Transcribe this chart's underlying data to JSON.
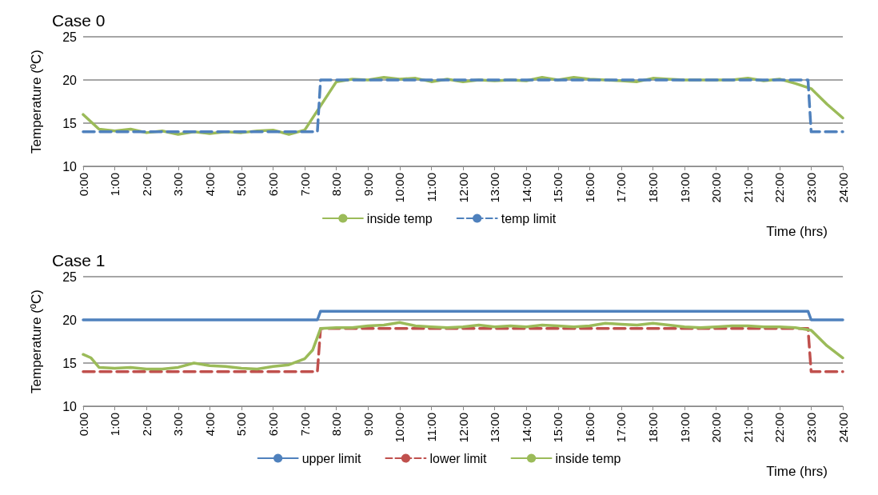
{
  "chart_data": [
    {
      "type": "line",
      "title": "Case 0",
      "xlabel": "Time (hrs)",
      "ylabel": "Temperature (ºC)",
      "xlim": [
        0,
        24
      ],
      "xticks": [
        {
          "value": 0,
          "label": "0:00"
        },
        {
          "value": 1,
          "label": "1:00"
        },
        {
          "value": 2,
          "label": "2:00"
        },
        {
          "value": 3,
          "label": "3:00"
        },
        {
          "value": 4,
          "label": "4:00"
        },
        {
          "value": 5,
          "label": "5:00"
        },
        {
          "value": 6,
          "label": "6:00"
        },
        {
          "value": 7,
          "label": "7:00"
        },
        {
          "value": 8,
          "label": "8:00"
        },
        {
          "value": 9,
          "label": "9:00"
        },
        {
          "value": 10,
          "label": "10:00"
        },
        {
          "value": 11,
          "label": "11:00"
        },
        {
          "value": 12,
          "label": "12:00"
        },
        {
          "value": 13,
          "label": "13:00"
        },
        {
          "value": 14,
          "label": "14:00"
        },
        {
          "value": 15,
          "label": "15:00"
        },
        {
          "value": 16,
          "label": "16:00"
        },
        {
          "value": 17,
          "label": "17:00"
        },
        {
          "value": 18,
          "label": "18:00"
        },
        {
          "value": 19,
          "label": "19:00"
        },
        {
          "value": 20,
          "label": "20:00"
        },
        {
          "value": 21,
          "label": "21:00"
        },
        {
          "value": 22,
          "label": "22:00"
        },
        {
          "value": 23,
          "label": "23:00"
        },
        {
          "value": 24,
          "label": "24:00"
        }
      ],
      "ylim": [
        10,
        25
      ],
      "yticks": [
        10,
        15,
        20,
        25
      ],
      "grid": "y",
      "legend": "bottom",
      "marker": "none",
      "series": [
        {
          "name": "inside temp",
          "color": "#9bbb59",
          "line_style": "solid",
          "x": [
            0,
            0.5,
            1,
            1.5,
            2,
            2.5,
            3,
            3.5,
            4,
            4.5,
            5,
            5.5,
            6,
            6.5,
            7,
            7.5,
            8,
            8.5,
            9,
            9.5,
            10,
            10.5,
            11,
            11.5,
            12,
            12.5,
            13,
            13.5,
            14,
            14.5,
            15,
            15.5,
            16,
            16.5,
            17,
            17.5,
            18,
            18.5,
            19,
            19.5,
            20,
            20.5,
            21,
            21.5,
            22,
            22.5,
            23,
            23.5,
            24
          ],
          "values": [
            16,
            14.3,
            14.1,
            14.3,
            13.9,
            14.1,
            13.7,
            14,
            13.8,
            14,
            13.9,
            14.1,
            14.2,
            13.7,
            14.2,
            17,
            19.8,
            20.1,
            20,
            20.3,
            20.1,
            20.2,
            19.8,
            20.1,
            19.8,
            20,
            19.9,
            20,
            19.9,
            20.3,
            20,
            20.3,
            20.1,
            20,
            19.9,
            19.8,
            20.2,
            20.1,
            20,
            20,
            20,
            20,
            20.2,
            19.9,
            20.1,
            19.6,
            19,
            17.2,
            15.6
          ]
        },
        {
          "name": "temp limit",
          "color": "#4f81bd",
          "line_style": "dashed",
          "x": [
            0,
            7.4,
            7.5,
            22.9,
            23,
            24
          ],
          "values": [
            14,
            14,
            20,
            20,
            14,
            14
          ]
        }
      ]
    },
    {
      "type": "line",
      "title": "Case 1",
      "xlabel": "Time (hrs)",
      "ylabel": "Temperature (ºC)",
      "xlim": [
        0,
        24
      ],
      "xticks": [
        {
          "value": 0,
          "label": "0:00"
        },
        {
          "value": 1,
          "label": "1:00"
        },
        {
          "value": 2,
          "label": "2:00"
        },
        {
          "value": 3,
          "label": "3:00"
        },
        {
          "value": 4,
          "label": "4:00"
        },
        {
          "value": 5,
          "label": "5:00"
        },
        {
          "value": 6,
          "label": "6:00"
        },
        {
          "value": 7,
          "label": "7:00"
        },
        {
          "value": 8,
          "label": "8:00"
        },
        {
          "value": 9,
          "label": "9:00"
        },
        {
          "value": 10,
          "label": "10:00"
        },
        {
          "value": 11,
          "label": "11:00"
        },
        {
          "value": 12,
          "label": "12:00"
        },
        {
          "value": 13,
          "label": "13:00"
        },
        {
          "value": 14,
          "label": "14:00"
        },
        {
          "value": 15,
          "label": "15:00"
        },
        {
          "value": 16,
          "label": "16:00"
        },
        {
          "value": 17,
          "label": "17:00"
        },
        {
          "value": 18,
          "label": "18:00"
        },
        {
          "value": 19,
          "label": "19:00"
        },
        {
          "value": 20,
          "label": "20:00"
        },
        {
          "value": 21,
          "label": "21:00"
        },
        {
          "value": 22,
          "label": "22:00"
        },
        {
          "value": 23,
          "label": "23:00"
        },
        {
          "value": 24,
          "label": "24:00"
        }
      ],
      "ylim": [
        10,
        25
      ],
      "yticks": [
        10,
        15,
        20,
        25
      ],
      "grid": "y",
      "legend": "bottom",
      "marker": "none",
      "series": [
        {
          "name": "upper limit",
          "color": "#4f81bd",
          "line_style": "solid",
          "x": [
            0,
            7.4,
            7.5,
            22.9,
            23,
            24
          ],
          "values": [
            20,
            20,
            21,
            21,
            20,
            20
          ]
        },
        {
          "name": "lower limit",
          "color": "#c0504d",
          "line_style": "dashed",
          "x": [
            0,
            7.4,
            7.5,
            22.9,
            23,
            24
          ],
          "values": [
            14,
            14,
            19,
            19,
            14,
            14
          ]
        },
        {
          "name": "inside temp",
          "color": "#9bbb59",
          "line_style": "solid",
          "x": [
            0,
            0.25,
            0.5,
            1,
            1.5,
            2,
            2.5,
            3,
            3.5,
            4,
            4.5,
            5,
            5.5,
            6,
            6.5,
            7,
            7.25,
            7.5,
            8,
            8.5,
            9,
            9.5,
            10,
            10.5,
            11,
            11.5,
            12,
            12.5,
            13,
            13.5,
            14,
            14.5,
            15,
            15.5,
            16,
            16.5,
            17,
            17.5,
            18,
            18.5,
            19,
            19.5,
            20,
            20.5,
            21,
            21.5,
            22,
            22.5,
            23,
            23.5,
            24
          ],
          "values": [
            16,
            15.6,
            14.5,
            14.4,
            14.5,
            14.3,
            14.3,
            14.5,
            15,
            14.7,
            14.6,
            14.4,
            14.3,
            14.6,
            14.8,
            15.5,
            16.5,
            19,
            19.1,
            19.1,
            19.3,
            19.4,
            19.7,
            19.3,
            19.2,
            19.1,
            19.2,
            19.4,
            19.2,
            19.3,
            19.2,
            19.4,
            19.3,
            19.2,
            19.3,
            19.6,
            19.5,
            19.4,
            19.6,
            19.4,
            19.2,
            19.1,
            19.2,
            19.3,
            19.3,
            19.2,
            19.2,
            19.1,
            18.8,
            17,
            15.6
          ]
        }
      ]
    }
  ]
}
